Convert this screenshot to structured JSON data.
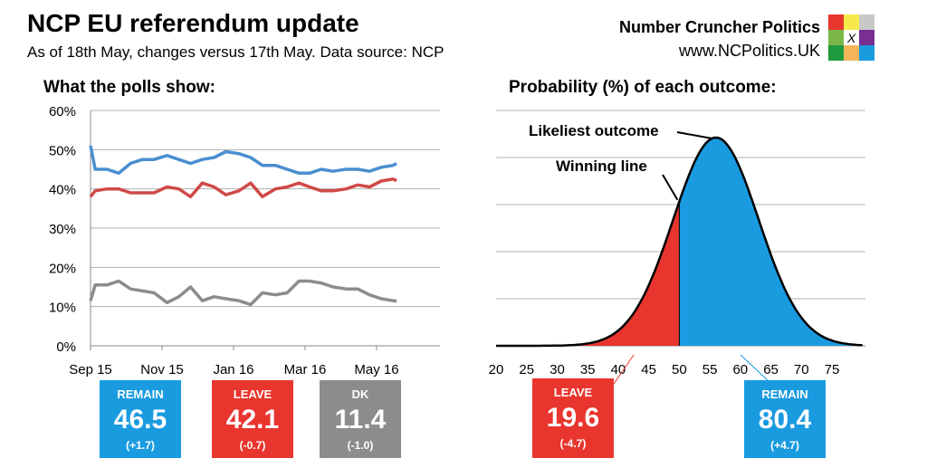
{
  "header": {
    "title": "NCP EU referendum update",
    "subtitle": "As of 18th May, changes versus 17th May. Data source: NCP",
    "brand": "Number Cruncher Politics",
    "url": "www.NCPolitics.UK",
    "logo_colors": [
      "#e8352e",
      "#f7e94a",
      "#c8c8c8",
      "#7ab648",
      "#ffffff",
      "#7b2e91",
      "#1f9a3c",
      "#f7b55a",
      "#1a9be0"
    ],
    "logo_mark": "X"
  },
  "colors": {
    "remain": "#1a9be0",
    "leave": "#e8352e",
    "dk": "#8c8c8c",
    "remain_line": "#4a8ed0",
    "leave_line": "#d04a48"
  },
  "chart_data": [
    {
      "type": "line",
      "title": "What the polls show:",
      "ylim": [
        0,
        60
      ],
      "yticks": [
        "0%",
        "10%",
        "20%",
        "30%",
        "40%",
        "50%",
        "60%"
      ],
      "xticks": [
        "Sep 15",
        "Nov 15",
        "Jan 16",
        "Mar 16",
        "May 16"
      ],
      "grid": true,
      "x": [
        "2015-09-01",
        "2015-09-05",
        "2015-09-15",
        "2015-09-25",
        "2015-10-05",
        "2015-10-15",
        "2015-10-25",
        "2015-11-05",
        "2015-11-15",
        "2015-11-25",
        "2015-12-05",
        "2015-12-15",
        "2015-12-25",
        "2016-01-05",
        "2016-01-15",
        "2016-01-25",
        "2016-02-05",
        "2016-02-15",
        "2016-02-25",
        "2016-03-05",
        "2016-03-15",
        "2016-03-25",
        "2016-04-05",
        "2016-04-15",
        "2016-04-25",
        "2016-05-05",
        "2016-05-15",
        "2016-05-18"
      ],
      "series": [
        {
          "name": "REMAIN",
          "values": [
            51,
            45,
            45,
            44,
            46.5,
            47.5,
            47.5,
            48.5,
            47.5,
            46.5,
            47.5,
            48,
            49.5,
            49,
            48,
            46,
            46,
            45,
            44,
            44,
            45,
            44.5,
            45,
            45,
            44.5,
            45.5,
            46,
            46.5
          ]
        },
        {
          "name": "LEAVE",
          "values": [
            38,
            39.5,
            40,
            40,
            39,
            39,
            39,
            40.5,
            40,
            38,
            41.5,
            40.5,
            38.5,
            39.5,
            41.5,
            38,
            40,
            40.5,
            41.5,
            40.5,
            39.5,
            39.5,
            40,
            41,
            40.5,
            42,
            42.5,
            42.1
          ]
        },
        {
          "name": "DK",
          "values": [
            11.5,
            15.5,
            15.5,
            16.5,
            14.5,
            14,
            13.5,
            11,
            12.5,
            15,
            11.5,
            12.5,
            12,
            11.5,
            10.5,
            13.5,
            13,
            13.5,
            16.5,
            16.5,
            16,
            15,
            14.5,
            14.5,
            13,
            12,
            11.5,
            11.4
          ]
        }
      ]
    },
    {
      "type": "area",
      "title": "Probability (%) of each outcome:",
      "xticks": [
        "20",
        "25",
        "30",
        "35",
        "40",
        "45",
        "50",
        "55",
        "60",
        "65",
        "70",
        "75"
      ],
      "xlim": [
        20,
        80
      ],
      "mean": 56,
      "sd": 7,
      "threshold": 50,
      "grid": true,
      "annotations": [
        "Likeliest outcome",
        "Winning line"
      ]
    }
  ],
  "polls": {
    "remain": {
      "label": "REMAIN",
      "value": "46.5",
      "change": "(+1.7)"
    },
    "leave": {
      "label": "LEAVE",
      "value": "42.1",
      "change": "(-0.7)"
    },
    "dk": {
      "label": "DK",
      "value": "11.4",
      "change": "(-1.0)"
    }
  },
  "probability": {
    "leave": {
      "label": "LEAVE",
      "value": "19.6",
      "change": "(-4.7)"
    },
    "remain": {
      "label": "REMAIN",
      "value": "80.4",
      "change": "(+4.7)"
    }
  }
}
